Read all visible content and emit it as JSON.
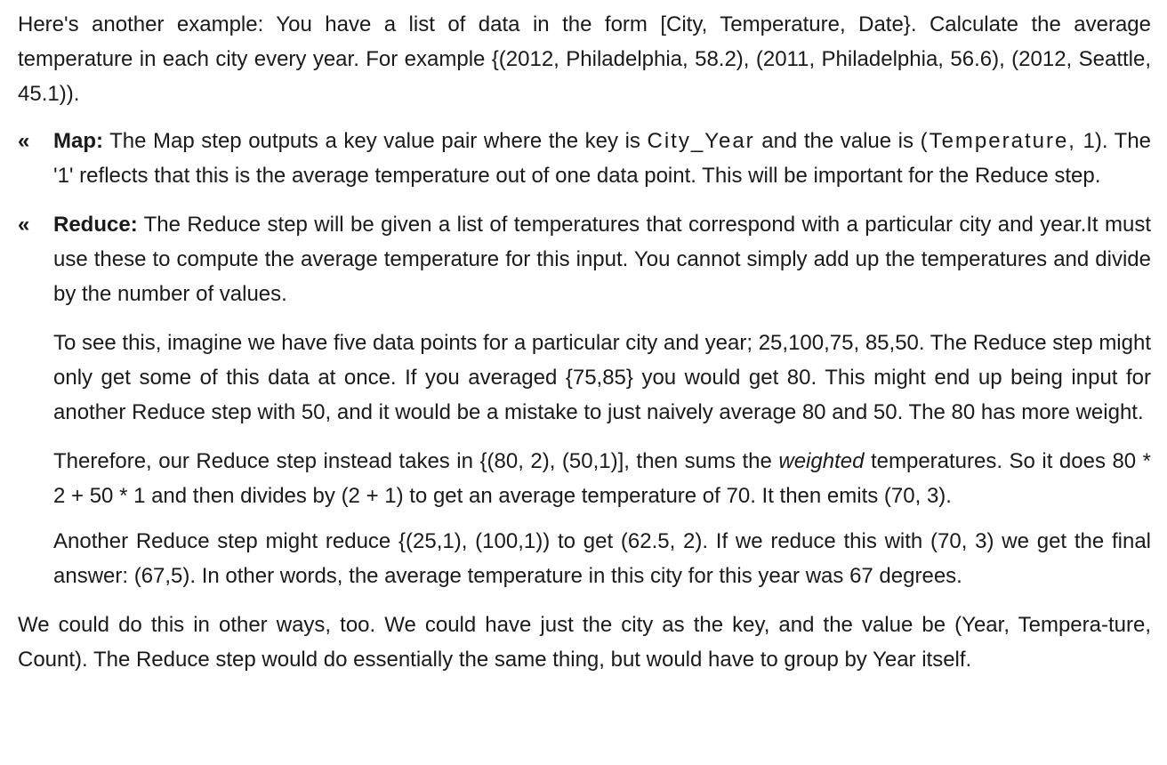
{
  "intro": "Here's another example: You have a list of data in the form [City, Temperature, Date}. Calculate the average temperature in each city every year. For example {(2012, Philadelphia, 58.2), (2011, Philadelphia, 56.6), (2012, Seattle, 45.1)).",
  "bullet_mark": "«",
  "map": {
    "label": "Map:",
    "text_before": " The Map step outputs a key value pair where the key is ",
    "key": "City_Year",
    "text_middle": " and the value is ",
    "value": "(Temperature,",
    "text_after": " 1). The '1' reflects that this is the average temperature out of one data point. This will be important for the Reduce step."
  },
  "reduce": {
    "label": "Reduce:",
    "text": " The Reduce step will be given a list of temperatures that correspond with a particular city and year.It must use these to compute the average temperature for this input. You cannot simply add up the temperatures and divide by the number of values.",
    "para2": "To see this, imagine we have five data points for a particular city and year; 25,100,75, 85,50. The Reduce step might only get some of this data at once. If you averaged {75,85} you would get 80. This might end up being input for another Reduce step with 50, and it would be a mistake to just naively average 80 and 50. The 80 has more weight.",
    "para3_before": "Therefore, our Reduce step instead takes in {(80, 2), (50,1)], then sums the ",
    "para3_em": "weighted",
    "para3_after": " temperatures. So it does 80 * 2 + 50 * 1 and then divides by (2 + 1) to get an average temperature of 70. It then emits (70, 3).",
    "para4": "Another Reduce step might reduce {(25,1), (100,1)) to get (62.5, 2). If we reduce this with (70, 3) we get the final answer: (67,5). In other words, the average temperature in this city for this year was 67 degrees."
  },
  "closing": "We could do this in other ways, too. We could have just the city as the key, and the value be (Year, Tempera-ture, Count). The Reduce step would do essentially the same thing, but would have to group by Year itself."
}
